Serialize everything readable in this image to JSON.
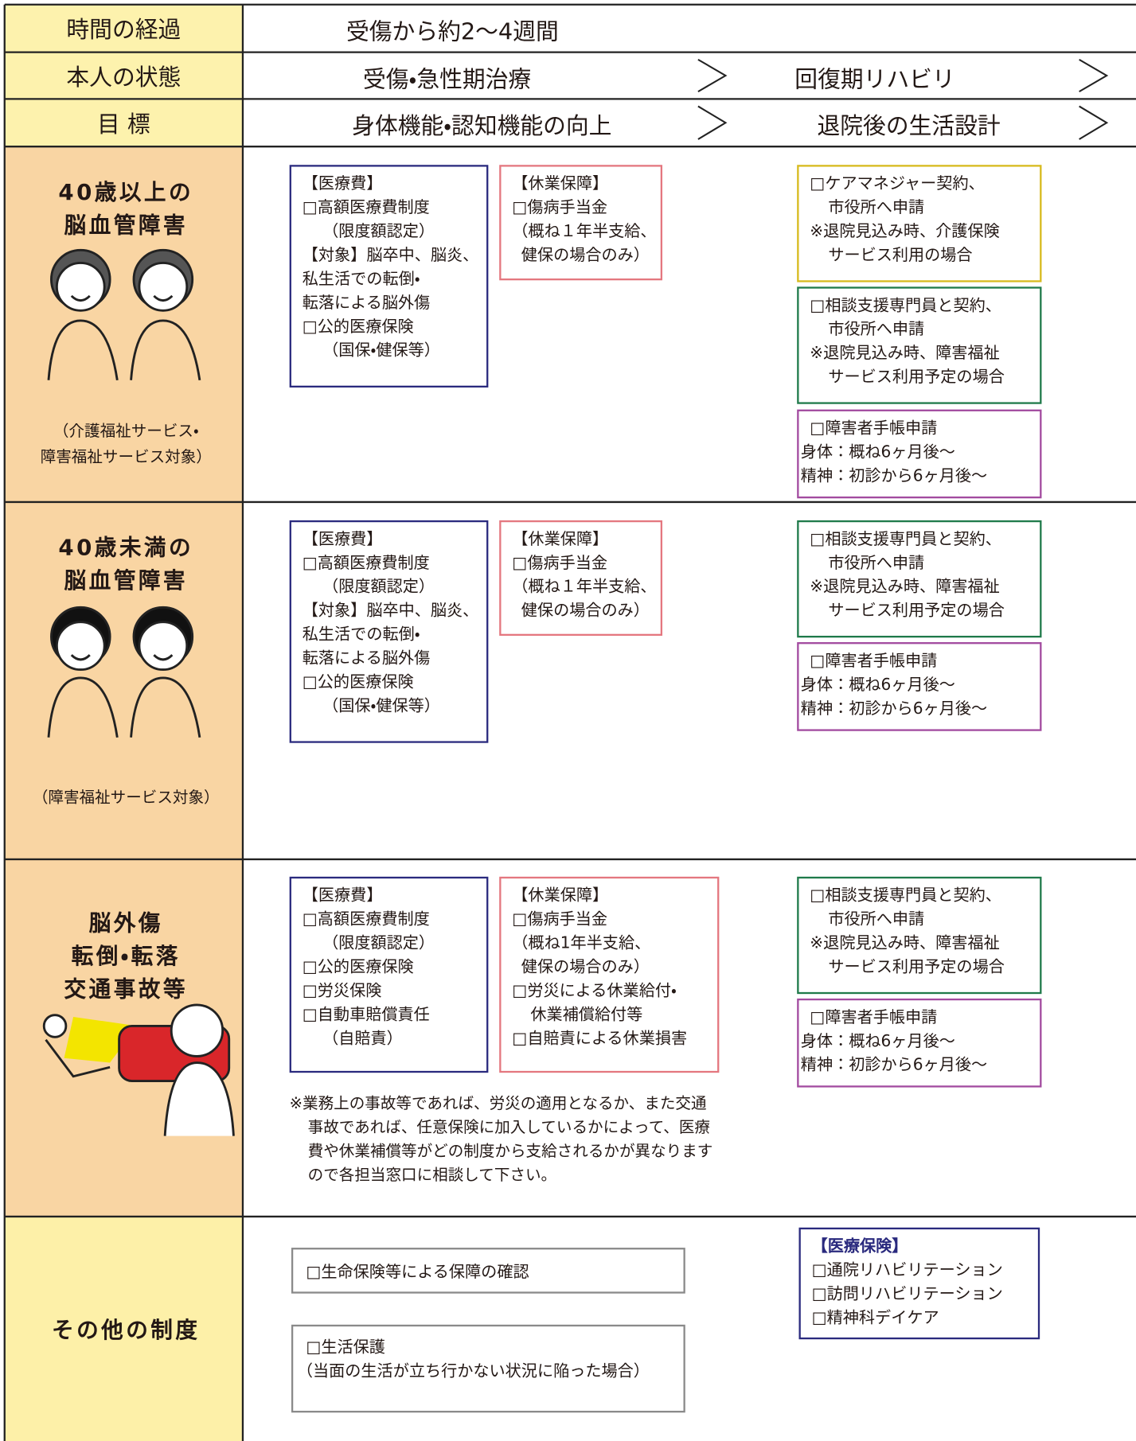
{
  "header": {
    "rows": [
      {
        "label": "時間の経過",
        "cells": [
          "受傷から約2～4週間"
        ]
      },
      {
        "label": "本人の状態",
        "cells": [
          "受傷・急性期治療",
          "回復期リハビリ"
        ]
      },
      {
        "label": "目 標",
        "cells": [
          "身体機能・認知機能の向上",
          "退院後の生活設計"
        ]
      }
    ]
  },
  "sections": [
    {
      "title": [
        "40歳以上の",
        "脳血管障害"
      ],
      "note": [
        "（介護福祉サービス・",
        "障害福祉サービス対象）"
      ],
      "boxes": [
        {
          "lines": [
            "【医療費】",
            "□高額医療費制度",
            "（限度額認定）",
            "【対象】脳卒中、脳炎、",
            "私生活での転倒・",
            "転落による脳外傷",
            "□公的医療保険",
            "（国保・健保等）"
          ]
        },
        {
          "lines": [
            "【休業保障】",
            "□傷病手当金",
            "（概ね１年半支給、",
            "健保の場合のみ）"
          ]
        },
        {
          "lines": [
            "□ケアマネジャー契約、",
            "市役所へ申請",
            "※退院見込み時、介護保険",
            "サービス利用の場合"
          ]
        },
        {
          "lines": [
            "□相談支援専門員と契約、",
            "市役所へ申請",
            "※退院見込み時、障害福祉",
            "サービス利用予定の場合"
          ]
        },
        {
          "lines": [
            "□障害者手帳申請",
            "身体：概ね6ヶ月後～",
            "精神：初診から6ヶ月後～"
          ]
        }
      ]
    },
    {
      "title": [
        "40歳未満の",
        "脳血管障害"
      ],
      "note": [
        "（障害福祉サービス対象）"
      ],
      "boxes": [
        {
          "lines": [
            "【医療費】",
            "□高額医療費制度",
            "（限度額認定）",
            "【対象】脳卒中、脳炎、",
            "私生活での転倒・",
            "転落による脳外傷",
            "□公的医療保険",
            "（国保・健保等）"
          ]
        },
        {
          "lines": [
            "【休業保障】",
            "□傷病手当金",
            "（概ね１年半支給、",
            "健保の場合のみ）"
          ]
        },
        {
          "lines": [
            "□相談支援専門員と契約、",
            "市役所へ申請",
            "※退院見込み時、障害福祉",
            "サービス利用予定の場合"
          ]
        },
        {
          "lines": [
            "□障害者手帳申請",
            "身体：概ね6ヶ月後～",
            "精神：初診から6ヶ月後～"
          ]
        }
      ]
    },
    {
      "title": [
        "脳外傷",
        "転倒・転落",
        "交通事故等"
      ],
      "boxes": [
        {
          "lines": [
            "【医療費】",
            "□高額医療費制度",
            "（限度額認定）",
            "□公的医療保険",
            "□労災保険",
            "□自動車賠償責任",
            "（自賠責）"
          ]
        },
        {
          "lines": [
            "【休業保障】",
            "□傷病手当金",
            "（概ね1年半支給、",
            "健保の場合のみ）",
            "□労災による休業給付・",
            "休業補償給付等",
            "□自賠責による休業損害"
          ]
        },
        {
          "lines": [
            "□相談支援専門員と契約、",
            "市役所へ申請",
            "※退院見込み時、障害福祉",
            "サービス利用予定の場合"
          ]
        },
        {
          "lines": [
            "□障害者手帳申請",
            "身体：概ね6ヶ月後～",
            "精神：初診から6ヶ月後～"
          ]
        }
      ],
      "remark": [
        "※業務上の事故等であれば、労災の適用となるか、また交通",
        "事故であれば、任意保険に加入しているかによって、医療",
        "費や休業補償等がどの制度から支給されるかが異なります",
        "ので各担当窓口に相談して下さい。"
      ]
    },
    {
      "title": [
        "その他の制度"
      ],
      "boxes": [
        {
          "lines": [
            "□生命保険等による保障の確認"
          ]
        },
        {
          "lines": [
            "□生活保護",
            "（当面の生活が立ち行かない状況に陥った場合）"
          ]
        },
        {
          "lines": [
            "【医療保険】",
            "□通院リハビリテーション",
            "□訪問リハビリテーション",
            "□精神科デイケア"
          ]
        }
      ]
    }
  ]
}
